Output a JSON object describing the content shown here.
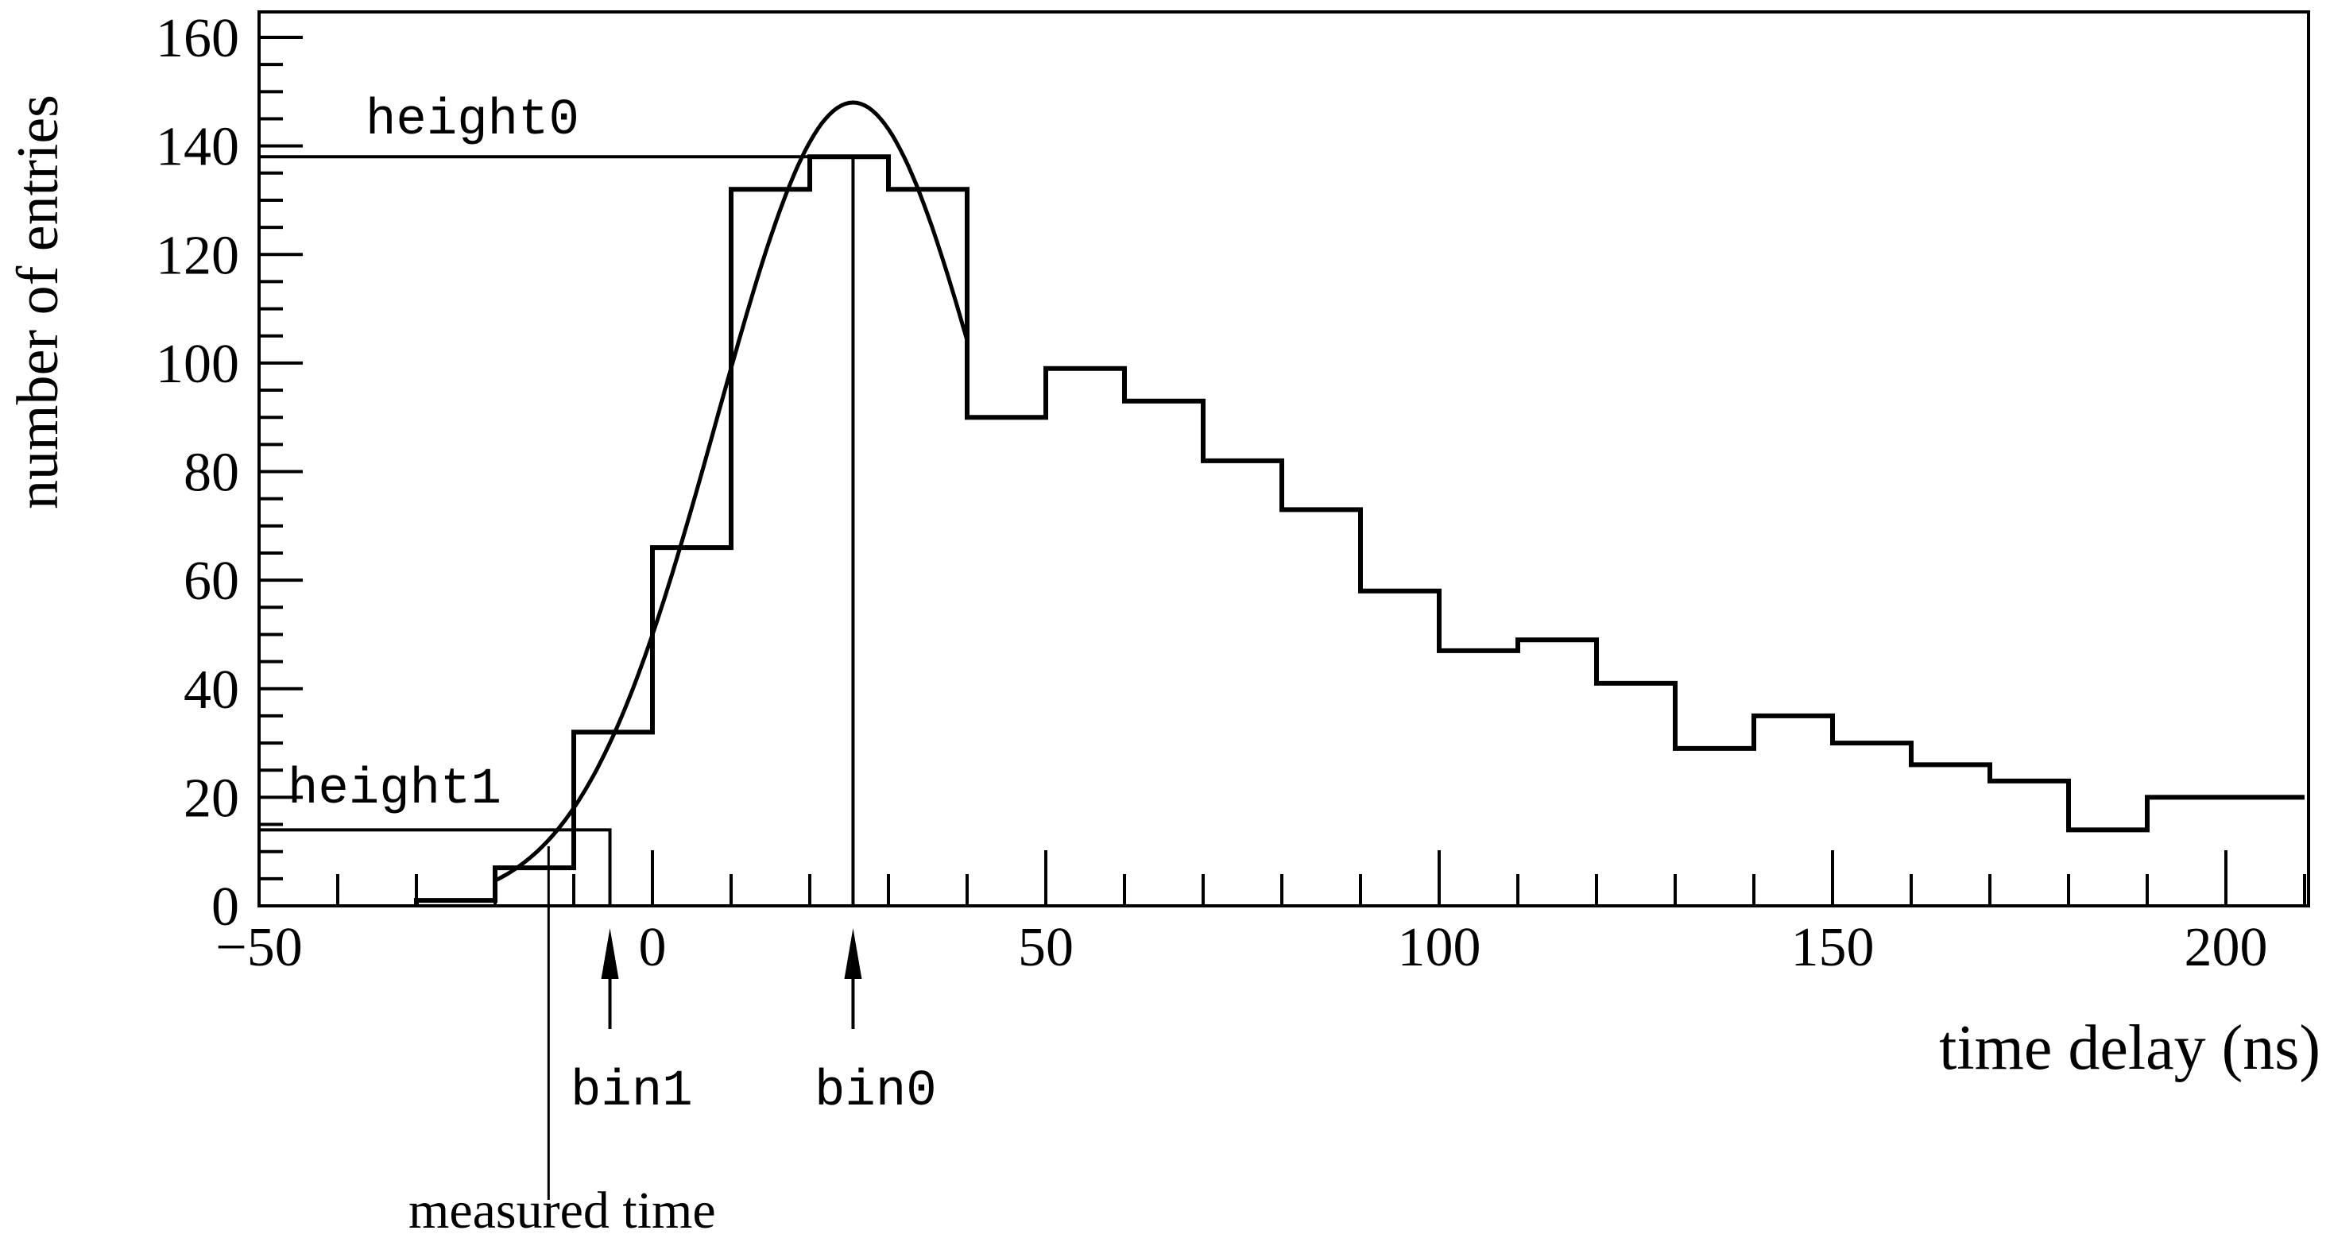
{
  "chart_data": {
    "type": "histogram",
    "title": "",
    "xlabel": "time delay (ns)",
    "ylabel": "number of entries",
    "xlim": [
      -50,
      210
    ],
    "ylim": [
      0,
      160
    ],
    "xticks": [
      -50,
      0,
      50,
      100,
      150,
      200
    ],
    "yticks": [
      0,
      20,
      40,
      60,
      80,
      100,
      120,
      140,
      160
    ],
    "grid": false,
    "bin_width": 10,
    "bin_edges_start": -30,
    "bin_edges": [
      -30,
      -20,
      -10,
      0,
      10,
      20,
      30,
      40,
      50,
      60,
      70,
      80,
      90,
      100,
      110,
      120,
      130,
      140,
      150,
      160,
      170,
      180,
      190,
      200,
      210
    ],
    "values": [
      1,
      7,
      32,
      66,
      132,
      138,
      132,
      90,
      99,
      93,
      82,
      73,
      58,
      47,
      49,
      41,
      29,
      35,
      30,
      26,
      23,
      14,
      20,
      20
    ],
    "fit": {
      "type": "gaussian",
      "amplitude": 148,
      "mean": 25.5,
      "sigma": 17.3,
      "range": [
        -20,
        40
      ]
    },
    "annotations": {
      "height0": {
        "label": "height0",
        "value": 138
      },
      "height1": {
        "label": "height1",
        "value": 14
      },
      "bin0": {
        "label": "bin0",
        "x": 25.5
      },
      "bin1": {
        "label": "bin1",
        "x": -5.4
      },
      "measured_time": {
        "label": "measured time",
        "x": -13.2
      }
    }
  }
}
